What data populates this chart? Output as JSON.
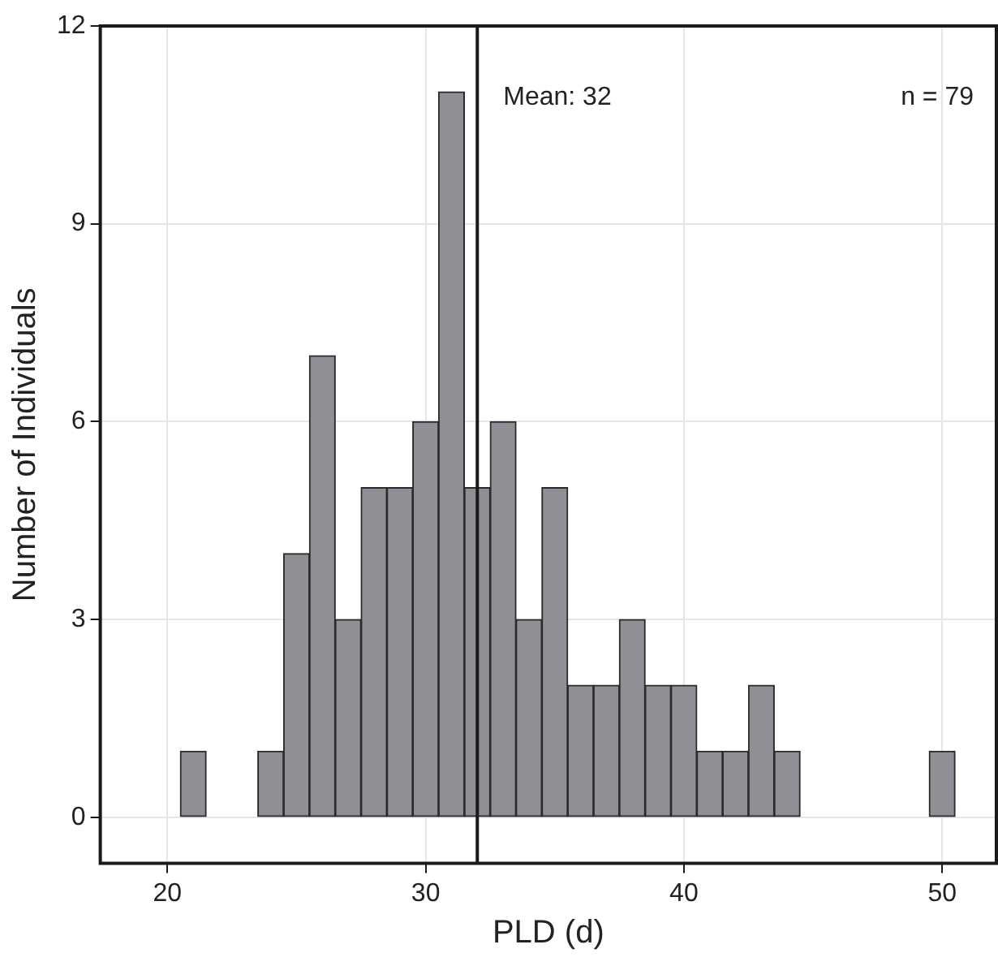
{
  "chart_data": {
    "type": "histogram",
    "xlabel": "PLD (d)",
    "ylabel": "Number of Individuals",
    "bins": [
      19.5,
      20.5,
      21.5,
      22.5,
      23.5,
      24.5,
      25.5,
      26.5,
      27.5,
      28.5,
      29.5,
      30.5,
      31.5,
      32.5,
      33.5,
      34.5,
      35.5,
      36.5,
      37.5,
      38.5,
      39.5,
      40.5,
      41.5,
      42.5,
      43.5,
      44.5,
      45.5,
      46.5,
      47.5,
      48.5,
      49.5,
      50.5
    ],
    "values": [
      0,
      1,
      0,
      0,
      1,
      4,
      7,
      3,
      5,
      5,
      6,
      11,
      5,
      6,
      3,
      5,
      2,
      2,
      3,
      2,
      2,
      1,
      1,
      2,
      1,
      0,
      0,
      0,
      0,
      0,
      1
    ],
    "color": "#8f9095",
    "xlim": [
      17.4,
      52.1
    ],
    "xticks": [
      20,
      30,
      40,
      50
    ],
    "ylim": [
      -0.7,
      12
    ],
    "yticks": [
      0,
      3,
      6,
      9,
      12
    ],
    "grid": true,
    "ref_lines": [
      {
        "axis": "x",
        "value": 32,
        "label": "Mean: 32",
        "color": "#1a1a1a"
      }
    ],
    "annotations": [
      "n = 79"
    ]
  }
}
